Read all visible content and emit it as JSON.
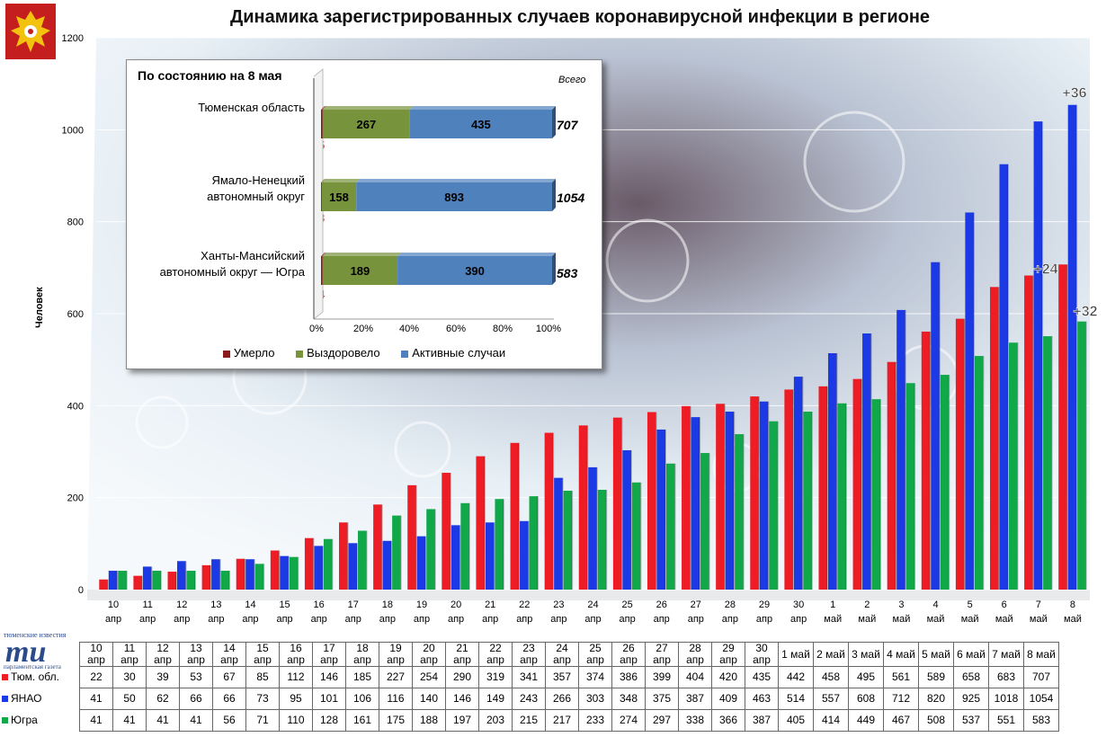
{
  "title": "Динамика зарегистрированных случаев коронавирусной инфекции  в регионе",
  "colors": {
    "tyumen": "#ee1c25",
    "yanao": "#1c39e6",
    "yugra": "#11a84a",
    "died": "#8b1a1a",
    "recovered": "#77933c",
    "active": "#4f81bd"
  },
  "chart_data": [
    {
      "type": "bar",
      "ylabel": "Человек",
      "ylim": [
        0,
        1200
      ],
      "yticks": [
        0,
        200,
        400,
        600,
        800,
        1000,
        1200
      ],
      "categories": [
        [
          "10",
          "апр"
        ],
        [
          "11",
          "апр"
        ],
        [
          "12",
          "апр"
        ],
        [
          "13",
          "апр"
        ],
        [
          "14",
          "апр"
        ],
        [
          "15",
          "апр"
        ],
        [
          "16",
          "апр"
        ],
        [
          "17",
          "апр"
        ],
        [
          "18",
          "апр"
        ],
        [
          "19",
          "апр"
        ],
        [
          "20",
          "апр"
        ],
        [
          "21",
          "апр"
        ],
        [
          "22",
          "апр"
        ],
        [
          "23",
          "апр"
        ],
        [
          "24",
          "апр"
        ],
        [
          "25",
          "апр"
        ],
        [
          "26",
          "апр"
        ],
        [
          "27",
          "апр"
        ],
        [
          "28",
          "апр"
        ],
        [
          "29",
          "апр"
        ],
        [
          "30",
          "апр"
        ],
        [
          "1",
          "май"
        ],
        [
          "2",
          "май"
        ],
        [
          "3",
          "май"
        ],
        [
          "4",
          "май"
        ],
        [
          "5",
          "май"
        ],
        [
          "6",
          "май"
        ],
        [
          "7",
          "май"
        ],
        [
          "8",
          "май"
        ]
      ],
      "series": [
        {
          "name": "Тюм. обл.",
          "values": [
            22,
            30,
            39,
            53,
            67,
            85,
            112,
            146,
            185,
            227,
            254,
            290,
            319,
            341,
            357,
            374,
            386,
            399,
            404,
            420,
            435,
            442,
            458,
            495,
            561,
            589,
            658,
            683,
            707
          ]
        },
        {
          "name": "ЯНАО",
          "values": [
            41,
            50,
            62,
            66,
            66,
            73,
            95,
            101,
            106,
            116,
            140,
            146,
            149,
            243,
            266,
            303,
            348,
            375,
            387,
            409,
            463,
            514,
            557,
            608,
            712,
            820,
            925,
            1018,
            1054
          ]
        },
        {
          "name": "Югра",
          "values": [
            41,
            41,
            41,
            41,
            56,
            71,
            110,
            128,
            161,
            175,
            188,
            197,
            203,
            215,
            217,
            233,
            274,
            297,
            338,
            366,
            387,
            405,
            414,
            449,
            467,
            508,
            537,
            551,
            583
          ]
        }
      ],
      "annotations": [
        "+36",
        "+24",
        "+32"
      ],
      "table_header": [
        "10 апр",
        "11 апр",
        "12 апр",
        "13 апр",
        "14 апр",
        "15 апр",
        "16 апр",
        "17 апр",
        "18 апр",
        "19 апр",
        "20 апр",
        "21 апр",
        "22 апр",
        "23 апр",
        "24 апр",
        "25 апр",
        "26 апр",
        "27 апр",
        "28 апр",
        "29 апр",
        "30 апр",
        "1 май",
        "2 май",
        "3 май",
        "4 май",
        "5 май",
        "6 май",
        "7 май",
        "8 май"
      ]
    },
    {
      "type": "bar",
      "title": "По состоянию на 8 мая",
      "total_header": "Всего",
      "stacked": "percent",
      "regions": [
        {
          "label_lines": [
            "Тюменская область"
          ],
          "died": 5,
          "recovered": 267,
          "active": 435,
          "total": "707"
        },
        {
          "label_lines": [
            "Ямало-Ненецкий",
            "автономный округ"
          ],
          "died": 3,
          "recovered": 158,
          "active": 893,
          "total": "1054"
        },
        {
          "label_lines": [
            "Ханты-Мансийский",
            "автономный округ — Югра"
          ],
          "died": 4,
          "recovered": 189,
          "active": 390,
          "total": "583"
        }
      ],
      "xticks": [
        "0%",
        "20%",
        "40%",
        "60%",
        "80%",
        "100%"
      ],
      "legend": [
        "Умерло",
        "Выздоровело",
        "Активные случаи"
      ]
    }
  ]
}
